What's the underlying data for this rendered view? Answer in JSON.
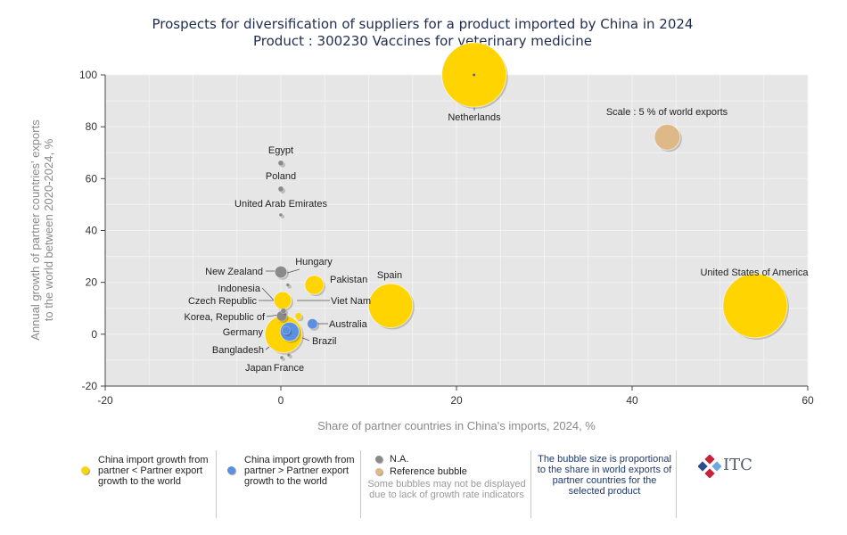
{
  "chart_data": {
    "type": "scatter",
    "title": "Prospects for diversification of suppliers for a product imported by China in 2024",
    "subtitle": "Product : 300230 Vaccines for veterinary medicine",
    "xlabel": "Share of partner countries in China's imports, 2024, %",
    "ylabel_line1": "Annual growth of partner countries' exports",
    "ylabel_line2": "to the world between 2020-2024, %",
    "xlim": [
      -20,
      60
    ],
    "ylim": [
      -20,
      100
    ],
    "xticks": [
      -20,
      0,
      20,
      40,
      60
    ],
    "yticks": [
      -20,
      0,
      20,
      40,
      60,
      80,
      100
    ],
    "grid": true,
    "colors": {
      "yellow": "#ffd400",
      "blue": "#5b8fe0",
      "gray": "#8a8a8a",
      "reference": "#deb887",
      "plot_bg": "#e6e6e6"
    },
    "points": [
      {
        "label": "Netherlands",
        "x": 22,
        "y": 100,
        "size": 9.5,
        "group": "yellow"
      },
      {
        "label": "United States of America",
        "x": 54,
        "y": 11,
        "size": 9.5,
        "group": "yellow"
      },
      {
        "label": "Spain",
        "x": 12.5,
        "y": 11,
        "size": 6.5,
        "group": "yellow"
      },
      {
        "label": "Pakistan",
        "x": 3.8,
        "y": 19,
        "size": 2.8,
        "group": "yellow"
      },
      {
        "label": "Czech Republic",
        "x": 0.2,
        "y": 13,
        "size": 2.6,
        "group": "yellow"
      },
      {
        "label": "Bangladesh",
        "x": 0.3,
        "y": 0,
        "size": 5.5,
        "group": "yellow"
      },
      {
        "label": "Viet Nam",
        "x": 2.0,
        "y": 7,
        "size": 1.0,
        "group": "yellow"
      },
      {
        "label": "Brazil",
        "x": 1.0,
        "y": 1,
        "size": 2.8,
        "group": "blue"
      },
      {
        "label": "Australia",
        "x": 3.6,
        "y": 4,
        "size": 1.5,
        "group": "blue"
      },
      {
        "label": "Germany",
        "x": 0.6,
        "y": 1.5,
        "size": 1.2,
        "group": "blue"
      },
      {
        "label": "Egypt",
        "x": 0,
        "y": 66,
        "size": 0.8,
        "group": "gray"
      },
      {
        "label": "Poland",
        "x": 0,
        "y": 56,
        "size": 0.8,
        "group": "gray"
      },
      {
        "label": "United Arab Emirates",
        "x": 0,
        "y": 46,
        "size": 0.4,
        "group": "gray"
      },
      {
        "label": "New Zealand",
        "x": 0,
        "y": 24,
        "size": 1.8,
        "group": "gray"
      },
      {
        "label": "Hungary",
        "x": 0.8,
        "y": 19,
        "size": 0.5,
        "group": "gray"
      },
      {
        "label": "Indonesia",
        "x": 0.3,
        "y": 9,
        "size": 0.8,
        "group": "gray"
      },
      {
        "label": "Korea, Republic of",
        "x": 0.1,
        "y": 7,
        "size": 1.5,
        "group": "gray"
      },
      {
        "label": "Japan",
        "x": 0.1,
        "y": -9,
        "size": 0.4,
        "group": "gray"
      },
      {
        "label": "France",
        "x": 0.9,
        "y": -8,
        "size": 0.5,
        "group": "gray"
      },
      {
        "label": "Scale : 5 % of world exports",
        "x": 44,
        "y": 76,
        "size": 3.8,
        "group": "reference"
      }
    ]
  },
  "legend": {
    "yellow": "China import growth from partner < Partner export growth to the world",
    "blue": "China import growth from partner > Partner export growth to the world",
    "na": "N.A.",
    "reference": "Reference bubble",
    "note": "Some bubbles may not be displayed due to lack of growth rate indicators",
    "size_note": "The bubble size is proportional to the share in world exports of partner countries for the selected product"
  },
  "logo": {
    "text": "ITC"
  }
}
